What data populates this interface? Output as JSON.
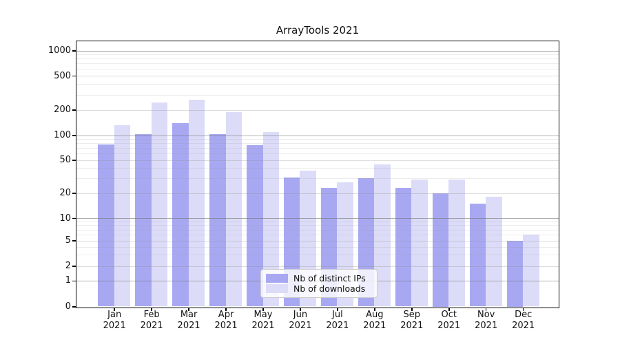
{
  "chart_data": {
    "type": "bar",
    "title": "ArrayTools 2021",
    "categories": [
      "Jan 2021",
      "Feb 2021",
      "Mar 2021",
      "Apr 2021",
      "May 2021",
      "Jun 2021",
      "Jul 2021",
      "Aug 2021",
      "Sep 2021",
      "Oct 2021",
      "Nov 2021",
      "Dec 2021"
    ],
    "series": [
      {
        "name": "Nb of distinct IPs",
        "color": "#a8a8f2",
        "values": [
          77,
          103,
          140,
          103,
          75,
          31,
          23,
          30,
          23,
          20,
          15,
          5
        ]
      },
      {
        "name": "Nb of downloads",
        "color": "#dcdcf8",
        "values": [
          132,
          245,
          263,
          188,
          108,
          37,
          27,
          44,
          29,
          29,
          18,
          6
        ]
      }
    ],
    "xlabel": "",
    "ylabel": "",
    "yaxis_scale": "symlog",
    "ylim": [
      0,
      1000
    ],
    "yticks": [
      "0",
      "1",
      "2",
      "5",
      "10",
      "20",
      "50",
      "100",
      "200",
      "500",
      "1000"
    ],
    "grid": "on",
    "legend_position": "lower-center"
  }
}
